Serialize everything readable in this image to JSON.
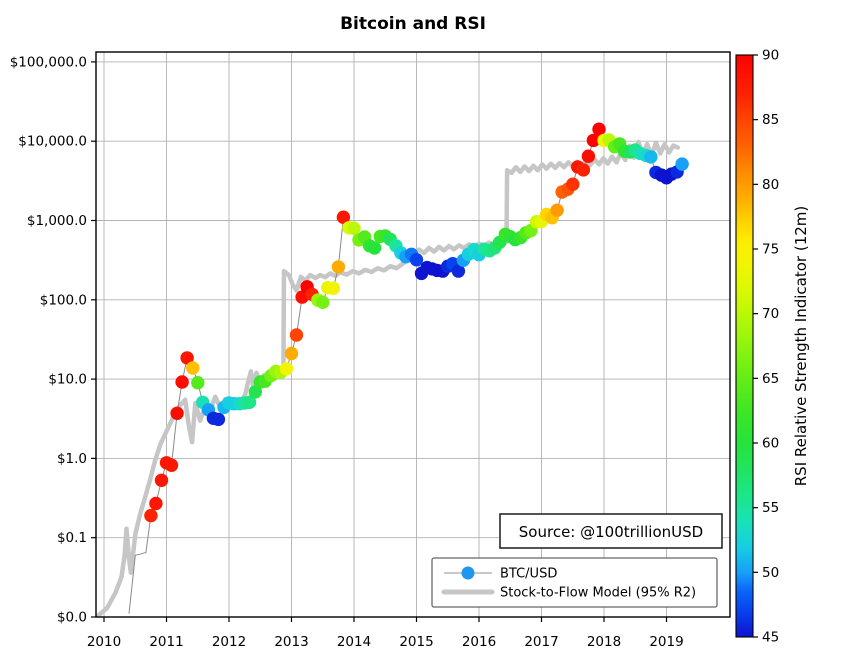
{
  "title": "Bitcoin and RSI",
  "source_label": "Source: @100trillionUSD",
  "legend": {
    "items": [
      {
        "label": "BTC/USD",
        "marker": "dot",
        "marker_color": "#2196ee",
        "line_color": "#b5b5b5"
      },
      {
        "label": "Stock-to-Flow Model (95% R2)",
        "marker": "thick-line",
        "line_color": "#c6c6c6"
      }
    ]
  },
  "colorbar": {
    "title": "RSI Relative Strength Indicator (12m)",
    "min": 45,
    "max": 90,
    "ticks": [
      90,
      85,
      80,
      75,
      70,
      65,
      60,
      55,
      50,
      45
    ],
    "stops": [
      [
        45,
        "#0d13cf"
      ],
      [
        47,
        "#0841ee"
      ],
      [
        48.5,
        "#0a64f8"
      ],
      [
        50,
        "#16a0f8"
      ],
      [
        52,
        "#16cfe2"
      ],
      [
        54,
        "#18e2b5"
      ],
      [
        56,
        "#1ce687"
      ],
      [
        58,
        "#20e45e"
      ],
      [
        60,
        "#26e33c"
      ],
      [
        62,
        "#39e528"
      ],
      [
        64,
        "#55ea1b"
      ],
      [
        66,
        "#74f013"
      ],
      [
        68,
        "#98f50c"
      ],
      [
        70,
        "#bbf806"
      ],
      [
        72,
        "#ddf803"
      ],
      [
        74,
        "#f3f402"
      ],
      [
        75.5,
        "#fdee01"
      ],
      [
        77,
        "#fed500"
      ],
      [
        79,
        "#ffab00"
      ],
      [
        81,
        "#ff8a00"
      ],
      [
        83,
        "#ff6300"
      ],
      [
        85,
        "#ff4400"
      ],
      [
        87,
        "#fe2200"
      ],
      [
        90,
        "#fd0100"
      ]
    ]
  },
  "axes": {
    "x_ticks": [
      2010,
      2011,
      2012,
      2013,
      2014,
      2015,
      2016,
      2017,
      2018,
      2019
    ],
    "y_ticks": [
      {
        "label": "$0.0",
        "value": 0.01
      },
      {
        "label": "$0.1",
        "value": 0.1
      },
      {
        "label": "$1.0",
        "value": 1
      },
      {
        "label": "$10.0",
        "value": 10
      },
      {
        "label": "$100.0",
        "value": 100
      },
      {
        "label": "$1,000.0",
        "value": 1000
      },
      {
        "label": "$10,000.0",
        "value": 10000
      },
      {
        "label": "$100,000.0",
        "value": 100000
      }
    ],
    "grid": true,
    "grid_color": "#b2b2b2"
  },
  "chart_data": {
    "type": "scatter",
    "title": "Bitcoin and RSI",
    "xlabel": "",
    "ylabel": "",
    "x_range": [
      2009.87,
      2020.02
    ],
    "y_range_log": [
      0.01,
      133000
    ],
    "color_scale": {
      "label": "RSI Relative Strength Indicator (12m)",
      "min": 45,
      "max": 90
    },
    "btc_line_lead": [
      [
        2010.4,
        0.011
      ],
      [
        2010.5,
        0.06
      ],
      [
        2010.58,
        0.062
      ],
      [
        2010.67,
        0.065
      ]
    ],
    "series": [
      {
        "name": "BTC/USD",
        "point_format": "[year, price_usd, rsi_12m]",
        "points": [
          [
            2010.75,
            0.19,
            87
          ],
          [
            2010.83,
            0.27,
            88
          ],
          [
            2010.92,
            0.53,
            88
          ],
          [
            2011.0,
            0.88,
            88
          ],
          [
            2011.08,
            0.82,
            88
          ],
          [
            2011.17,
            3.7,
            89
          ],
          [
            2011.25,
            9.2,
            89
          ],
          [
            2011.33,
            18.5,
            88
          ],
          [
            2011.42,
            13.8,
            78
          ],
          [
            2011.5,
            9.0,
            64
          ],
          [
            2011.58,
            5.1,
            54
          ],
          [
            2011.67,
            4.1,
            50
          ],
          [
            2011.75,
            3.2,
            46
          ],
          [
            2011.83,
            3.1,
            46
          ],
          [
            2011.92,
            4.4,
            51
          ],
          [
            2012.0,
            5.0,
            52
          ],
          [
            2012.08,
            4.9,
            52
          ],
          [
            2012.17,
            4.9,
            53
          ],
          [
            2012.25,
            5.0,
            55
          ],
          [
            2012.33,
            5.1,
            56
          ],
          [
            2012.42,
            6.9,
            59
          ],
          [
            2012.5,
            9.2,
            62
          ],
          [
            2012.58,
            9.4,
            63
          ],
          [
            2012.67,
            11.0,
            66
          ],
          [
            2012.75,
            12.5,
            68
          ],
          [
            2012.83,
            12.2,
            69
          ],
          [
            2012.92,
            13.5,
            74
          ],
          [
            2013.0,
            21,
            79
          ],
          [
            2013.08,
            36,
            85
          ],
          [
            2013.17,
            108,
            89
          ],
          [
            2013.25,
            146,
            90
          ],
          [
            2013.33,
            117,
            87
          ],
          [
            2013.42,
            99,
            68
          ],
          [
            2013.5,
            93,
            66
          ],
          [
            2013.58,
            142,
            73
          ],
          [
            2013.67,
            140,
            74
          ],
          [
            2013.75,
            260,
            79
          ],
          [
            2013.83,
            1100,
            88
          ],
          [
            2013.92,
            810,
            72
          ],
          [
            2014.0,
            800,
            70
          ],
          [
            2014.08,
            570,
            66
          ],
          [
            2014.17,
            620,
            64
          ],
          [
            2014.25,
            480,
            61
          ],
          [
            2014.33,
            450,
            60
          ],
          [
            2014.42,
            630,
            63
          ],
          [
            2014.5,
            640,
            62
          ],
          [
            2014.58,
            580,
            58
          ],
          [
            2014.67,
            480,
            55
          ],
          [
            2014.75,
            390,
            52
          ],
          [
            2014.83,
            350,
            50
          ],
          [
            2014.92,
            375,
            49
          ],
          [
            2015.0,
            320,
            47
          ],
          [
            2015.08,
            215,
            45
          ],
          [
            2015.17,
            255,
            45
          ],
          [
            2015.25,
            245,
            45
          ],
          [
            2015.33,
            235,
            45
          ],
          [
            2015.42,
            230,
            45
          ],
          [
            2015.5,
            265,
            46
          ],
          [
            2015.58,
            285,
            47
          ],
          [
            2015.67,
            230,
            46
          ],
          [
            2015.75,
            315,
            50
          ],
          [
            2015.83,
            375,
            52
          ],
          [
            2015.92,
            430,
            53
          ],
          [
            2016.0,
            370,
            52
          ],
          [
            2016.08,
            435,
            55
          ],
          [
            2016.17,
            415,
            56
          ],
          [
            2016.25,
            450,
            57
          ],
          [
            2016.33,
            530,
            59
          ],
          [
            2016.42,
            670,
            62
          ],
          [
            2016.5,
            625,
            61
          ],
          [
            2016.58,
            575,
            60
          ],
          [
            2016.67,
            610,
            62
          ],
          [
            2016.75,
            700,
            64
          ],
          [
            2016.83,
            745,
            66
          ],
          [
            2016.92,
            965,
            71
          ],
          [
            2017.0,
            970,
            73
          ],
          [
            2017.08,
            1190,
            77
          ],
          [
            2017.17,
            1080,
            78
          ],
          [
            2017.25,
            1350,
            80
          ],
          [
            2017.33,
            2290,
            83
          ],
          [
            2017.42,
            2480,
            84
          ],
          [
            2017.5,
            2870,
            86
          ],
          [
            2017.58,
            4740,
            88
          ],
          [
            2017.67,
            4340,
            87
          ],
          [
            2017.75,
            6470,
            89
          ],
          [
            2017.83,
            10230,
            90
          ],
          [
            2017.92,
            14160,
            90
          ],
          [
            2018.0,
            10220,
            74
          ],
          [
            2018.08,
            10360,
            70
          ],
          [
            2018.17,
            8500,
            65
          ],
          [
            2018.25,
            9250,
            63
          ],
          [
            2018.33,
            7490,
            61
          ],
          [
            2018.42,
            7300,
            58
          ],
          [
            2018.5,
            7750,
            56
          ],
          [
            2018.58,
            7010,
            54
          ],
          [
            2018.67,
            6630,
            53
          ],
          [
            2018.75,
            6340,
            51
          ],
          [
            2018.83,
            4040,
            46
          ],
          [
            2018.92,
            3740,
            45
          ],
          [
            2019.0,
            3460,
            45
          ],
          [
            2019.08,
            3850,
            45
          ],
          [
            2019.17,
            4100,
            46
          ],
          [
            2019.25,
            5150,
            50
          ]
        ]
      },
      {
        "name": "Stock-to-Flow Model (95% R2)",
        "point_format": "[year, model_usd]",
        "points": [
          [
            2009.88,
            0.01
          ],
          [
            2010.05,
            0.013
          ],
          [
            2010.18,
            0.02
          ],
          [
            2010.28,
            0.032
          ],
          [
            2010.33,
            0.06
          ],
          [
            2010.36,
            0.13
          ],
          [
            2010.4,
            0.055
          ],
          [
            2010.43,
            0.036
          ],
          [
            2010.5,
            0.11
          ],
          [
            2010.58,
            0.2
          ],
          [
            2010.66,
            0.33
          ],
          [
            2010.74,
            0.55
          ],
          [
            2010.82,
            0.95
          ],
          [
            2010.9,
            1.5
          ],
          [
            2011.0,
            2.2
          ],
          [
            2011.1,
            3.2
          ],
          [
            2011.2,
            4.5
          ],
          [
            2011.3,
            5.5
          ],
          [
            2011.36,
            2.5
          ],
          [
            2011.41,
            1.6
          ],
          [
            2011.46,
            5.0
          ],
          [
            2011.54,
            3.0
          ],
          [
            2011.62,
            4.6
          ],
          [
            2011.7,
            4.0
          ],
          [
            2011.78,
            6.0
          ],
          [
            2011.86,
            4.4
          ],
          [
            2011.94,
            5.6
          ],
          [
            2012.02,
            4.7
          ],
          [
            2012.1,
            5.6
          ],
          [
            2012.18,
            5.0
          ],
          [
            2012.26,
            6.4
          ],
          [
            2012.31,
            9.5
          ],
          [
            2012.35,
            12.5
          ],
          [
            2012.39,
            7.8
          ],
          [
            2012.44,
            12.0
          ],
          [
            2012.49,
            9.3
          ],
          [
            2012.56,
            11.2
          ],
          [
            2012.63,
            10.2
          ],
          [
            2012.7,
            11.5
          ],
          [
            2012.78,
            10.8
          ],
          [
            2012.84,
            12.5
          ],
          [
            2012.87,
            13.0
          ],
          [
            2012.88,
            230
          ],
          [
            2012.96,
            205
          ],
          [
            2013.02,
            155
          ],
          [
            2013.08,
            131
          ],
          [
            2013.15,
            195
          ],
          [
            2013.22,
            175
          ],
          [
            2013.3,
            205
          ],
          [
            2013.38,
            188
          ],
          [
            2013.46,
            205
          ],
          [
            2013.54,
            193
          ],
          [
            2013.62,
            215
          ],
          [
            2013.7,
            200
          ],
          [
            2013.78,
            222
          ],
          [
            2013.88,
            208
          ],
          [
            2013.98,
            230
          ],
          [
            2014.08,
            215
          ],
          [
            2014.18,
            238
          ],
          [
            2014.28,
            225
          ],
          [
            2014.38,
            250
          ],
          [
            2014.48,
            235
          ],
          [
            2014.58,
            265
          ],
          [
            2014.68,
            250
          ],
          [
            2014.78,
            285
          ],
          [
            2014.88,
            330
          ],
          [
            2014.96,
            390
          ],
          [
            2015.04,
            430
          ],
          [
            2015.12,
            390
          ],
          [
            2015.2,
            450
          ],
          [
            2015.28,
            405
          ],
          [
            2015.36,
            465
          ],
          [
            2015.44,
            420
          ],
          [
            2015.52,
            475
          ],
          [
            2015.6,
            435
          ],
          [
            2015.68,
            485
          ],
          [
            2015.76,
            450
          ],
          [
            2015.84,
            500
          ],
          [
            2015.92,
            470
          ],
          [
            2016.0,
            510
          ],
          [
            2016.08,
            480
          ],
          [
            2016.16,
            525
          ],
          [
            2016.24,
            495
          ],
          [
            2016.32,
            535
          ],
          [
            2016.4,
            510
          ],
          [
            2016.44,
            540
          ],
          [
            2016.45,
            4300
          ],
          [
            2016.52,
            4000
          ],
          [
            2016.59,
            4700
          ],
          [
            2016.66,
            4100
          ],
          [
            2016.73,
            4800
          ],
          [
            2016.8,
            4200
          ],
          [
            2016.87,
            4900
          ],
          [
            2016.94,
            4300
          ],
          [
            2017.01,
            5100
          ],
          [
            2017.08,
            4500
          ],
          [
            2017.15,
            5200
          ],
          [
            2017.22,
            4600
          ],
          [
            2017.29,
            5300
          ],
          [
            2017.36,
            4700
          ],
          [
            2017.43,
            5400
          ],
          [
            2017.5,
            4800
          ],
          [
            2017.57,
            5500
          ],
          [
            2017.64,
            4900
          ],
          [
            2017.71,
            5700
          ],
          [
            2017.78,
            5000
          ],
          [
            2017.85,
            5900
          ],
          [
            2017.92,
            5100
          ],
          [
            2017.99,
            6100
          ],
          [
            2018.06,
            5200
          ],
          [
            2018.13,
            6400
          ],
          [
            2018.2,
            5400
          ],
          [
            2018.27,
            7200
          ],
          [
            2018.34,
            5800
          ],
          [
            2018.41,
            8800
          ],
          [
            2018.48,
            6200
          ],
          [
            2018.55,
            9800
          ],
          [
            2018.62,
            6800
          ],
          [
            2018.69,
            9200
          ],
          [
            2018.76,
            6600
          ],
          [
            2018.83,
            9600
          ],
          [
            2018.9,
            7000
          ],
          [
            2018.97,
            9200
          ],
          [
            2019.04,
            7200
          ],
          [
            2019.11,
            8800
          ],
          [
            2019.18,
            8300
          ]
        ]
      }
    ]
  }
}
